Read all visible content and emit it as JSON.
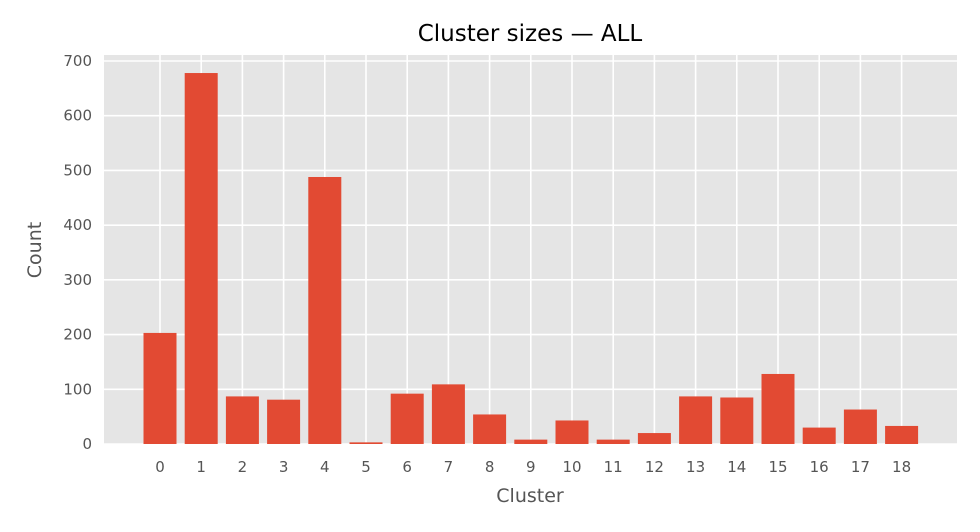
{
  "chart_data": {
    "type": "bar",
    "title": "Cluster sizes — ALL",
    "xlabel": "Cluster",
    "ylabel": "Count",
    "categories": [
      "0",
      "1",
      "2",
      "3",
      "4",
      "5",
      "6",
      "7",
      "8",
      "9",
      "10",
      "11",
      "12",
      "13",
      "14",
      "15",
      "16",
      "17",
      "18"
    ],
    "values": [
      203,
      678,
      87,
      81,
      488,
      3,
      92,
      109,
      54,
      8,
      43,
      8,
      20,
      87,
      85,
      128,
      30,
      63,
      33
    ],
    "ylim": [
      0,
      710
    ],
    "yticks": [
      0,
      100,
      200,
      300,
      400,
      500,
      600,
      700
    ],
    "grid": true,
    "legend": "none",
    "colors": {
      "bar": "#E24A33",
      "background": "#E5E5E5",
      "grid": "#FFFFFF"
    }
  }
}
